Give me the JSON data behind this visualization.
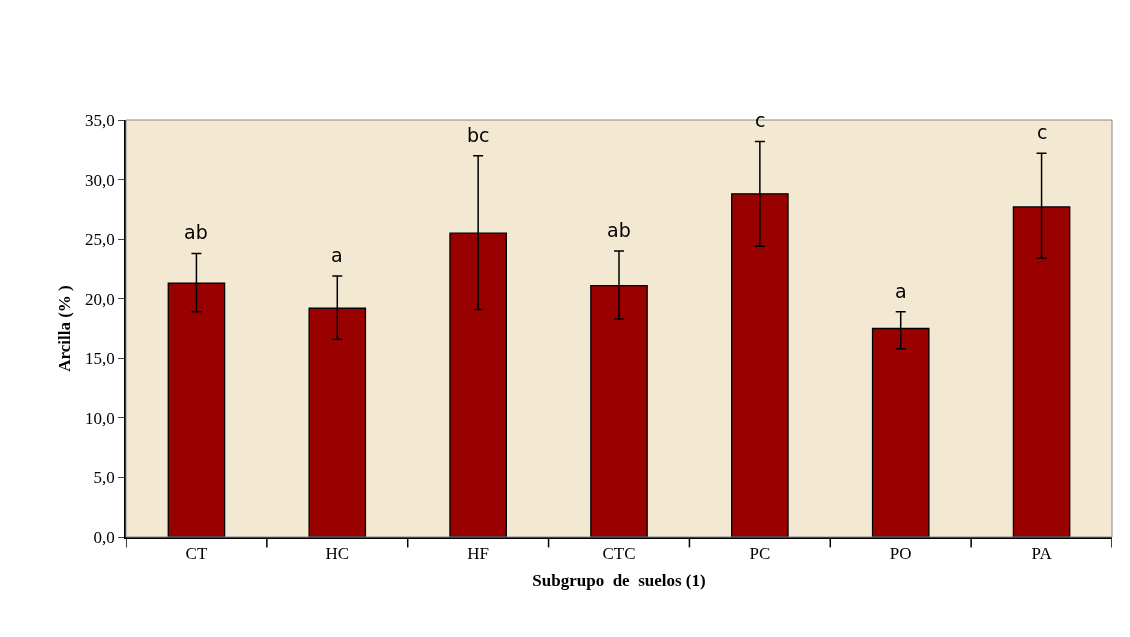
{
  "chart_data": {
    "type": "bar",
    "xlabel": "Subgrupo  de  suelos (1)",
    "ylabel": "Arcilla (% )",
    "categories": [
      "CT",
      "HC",
      "HF",
      "CTC",
      "PC",
      "PO",
      "PA"
    ],
    "values": [
      21.3,
      19.2,
      25.5,
      21.1,
      28.8,
      17.5,
      27.7
    ],
    "errors": [
      [
        18.9,
        23.8
      ],
      [
        16.6,
        21.9
      ],
      [
        19.1,
        32.0
      ],
      [
        18.3,
        24.0
      ],
      [
        24.4,
        33.2
      ],
      [
        15.8,
        18.9
      ],
      [
        23.4,
        32.2
      ]
    ],
    "color": "#990000",
    "ylim": [
      0,
      35
    ],
    "yticks": [
      {
        "value": 0,
        "label": "0,0"
      },
      {
        "value": 5,
        "label": "5,0"
      },
      {
        "value": 10,
        "label": "10,0"
      },
      {
        "value": 15,
        "label": "15,0"
      },
      {
        "value": 20,
        "label": "20,0"
      },
      {
        "value": 25,
        "label": "25,0"
      },
      {
        "value": 30,
        "label": "30,0"
      },
      {
        "value": 35,
        "label": "35,0"
      }
    ],
    "annotations": [
      {
        "text": "ab",
        "x": "CT",
        "y": 23.8
      },
      {
        "text": "a",
        "x": "HC",
        "y": 21.9
      },
      {
        "text": "bc",
        "x": "HF",
        "y": 32.0
      },
      {
        "text": "ab",
        "x": "CTC",
        "y": 24.0
      },
      {
        "text": "c",
        "x": "PC",
        "y": 33.2
      },
      {
        "text": "a",
        "x": "PO",
        "y": 18.9
      },
      {
        "text": "c",
        "x": "PA",
        "y": 32.2
      }
    ]
  }
}
